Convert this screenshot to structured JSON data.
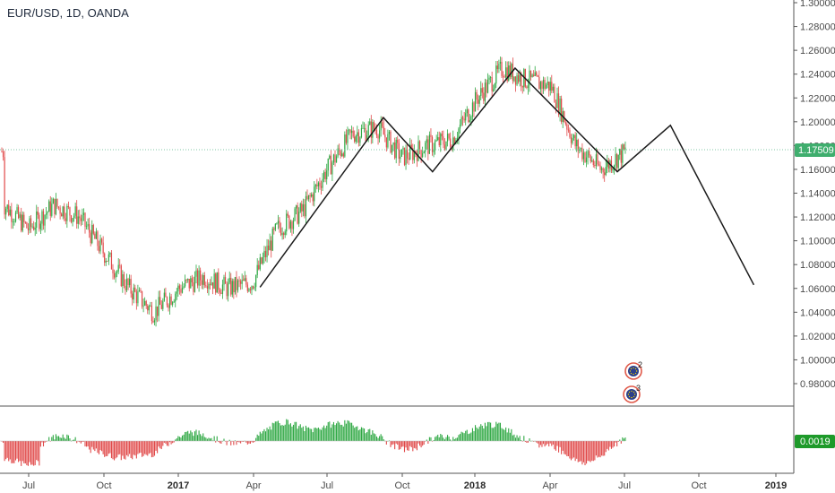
{
  "header": {
    "symbol_label": "EUR/USD, 1D, OANDA"
  },
  "colors": {
    "up": "#2ea843",
    "down": "#e04848",
    "pattern_line": "#1a1a1a",
    "price_line": "#7fc7a6",
    "price_tag": "#3fae6e",
    "osc_tag": "#1e9a2a",
    "axis_line": "#555555"
  },
  "price_axis": {
    "ticks": [
      "1.30000",
      "1.28000",
      "1.26000",
      "1.24000",
      "1.22000",
      "1.20000",
      "1.18000",
      "1.16000",
      "1.14000",
      "1.12000",
      "1.10000",
      "1.08000",
      "1.06000",
      "1.04000",
      "1.02000",
      "1.00000",
      "0.98000"
    ],
    "current_price": "1.17509"
  },
  "oscillator": {
    "current_value": "0.0019"
  },
  "time_axis": {
    "labels": [
      {
        "text": "Jul",
        "bold": false
      },
      {
        "text": "Oct",
        "bold": false
      },
      {
        "text": "2017",
        "bold": true
      },
      {
        "text": "Apr",
        "bold": false
      },
      {
        "text": "Jul",
        "bold": false
      },
      {
        "text": "Oct",
        "bold": false
      },
      {
        "text": "2018",
        "bold": true
      },
      {
        "text": "Apr",
        "bold": false
      },
      {
        "text": "Jul",
        "bold": false
      },
      {
        "text": "Oct",
        "bold": false
      },
      {
        "text": "2019",
        "bold": true
      }
    ]
  },
  "events": [
    {
      "name": "eu-event-icon",
      "count": "2"
    },
    {
      "name": "eu-event-icon",
      "count": "3"
    }
  ],
  "chart_data": {
    "type": "candlestick",
    "symbol": "EUR/USD",
    "interval": "1D",
    "x_axis": "time (2016 – 2019)",
    "y_range": [
      0.97,
      1.3
    ],
    "price_anchors": [
      {
        "date": "2016-06",
        "price": 1.13
      },
      {
        "date": "2016-07",
        "price": 1.11
      },
      {
        "date": "2016-08",
        "price": 1.13
      },
      {
        "date": "2016-09",
        "price": 1.12
      },
      {
        "date": "2016-10",
        "price": 1.09
      },
      {
        "date": "2016-11",
        "price": 1.06
      },
      {
        "date": "2016-12",
        "price": 1.04
      },
      {
        "date": "2017-01",
        "price": 1.06
      },
      {
        "date": "2017-02",
        "price": 1.07
      },
      {
        "date": "2017-03",
        "price": 1.06
      },
      {
        "date": "2017-04",
        "price": 1.065
      },
      {
        "date": "2017-05",
        "price": 1.11
      },
      {
        "date": "2017-06",
        "price": 1.125
      },
      {
        "date": "2017-07",
        "price": 1.16
      },
      {
        "date": "2017-08",
        "price": 1.19
      },
      {
        "date": "2017-09",
        "price": 1.195
      },
      {
        "date": "2017-10",
        "price": 1.17
      },
      {
        "date": "2017-11",
        "price": 1.18
      },
      {
        "date": "2017-12",
        "price": 1.185
      },
      {
        "date": "2018-01",
        "price": 1.22
      },
      {
        "date": "2018-02",
        "price": 1.245
      },
      {
        "date": "2018-03",
        "price": 1.235
      },
      {
        "date": "2018-04",
        "price": 1.23
      },
      {
        "date": "2018-05",
        "price": 1.18
      },
      {
        "date": "2018-06",
        "price": 1.16
      },
      {
        "date": "2018-07",
        "price": 1.175
      }
    ],
    "pattern_line": [
      {
        "date": "2017-04-10",
        "price": 1.061
      },
      {
        "date": "2017-09-08",
        "price": 1.2035
      },
      {
        "date": "2017-11-07",
        "price": 1.158
      },
      {
        "date": "2018-02-16",
        "price": 1.245
      },
      {
        "date": "2018-06-21",
        "price": 1.158
      },
      {
        "date": "2018-08-25",
        "price": 1.197
      },
      {
        "date": "2018-12-05",
        "price": 1.063
      }
    ],
    "oscillator_range": [
      -0.08,
      0.07
    ],
    "oscillator_last": 0.0019
  }
}
